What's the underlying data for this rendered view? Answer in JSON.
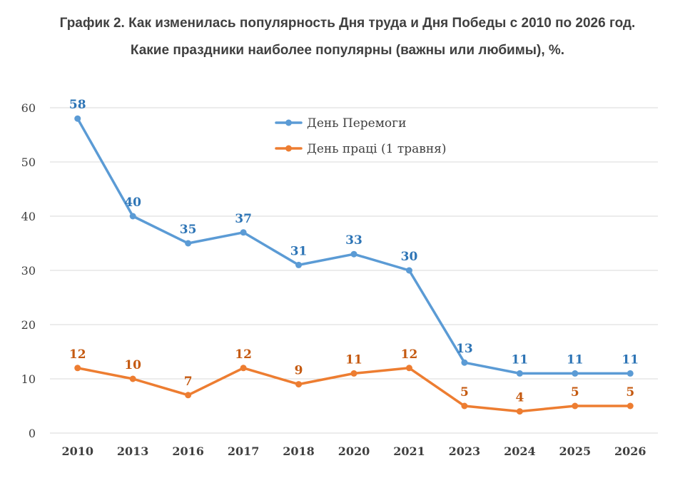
{
  "title_line1": "График 2. Как изменилась популярность Дня труда и Дня Победы с 2010 по 2026 год.",
  "title_line2": "Какие праздники наиболее популярны (важны или любимы), %.",
  "colors": {
    "victory": "#5b9bd5",
    "victory_label": "#2e75b6",
    "labour": "#ed7d31",
    "labour_label": "#c55a11",
    "grid": "#d9d9d9",
    "axis_text": "#404040"
  },
  "chart_data": {
    "type": "line",
    "title": "График 2. Как изменилась популярность Дня труда и Дня Победы с 2010 по 2026 год. Какие праздники наиболее популярны (важны или любимы), %.",
    "categories": [
      "2010",
      "2013",
      "2016",
      "2017",
      "2018",
      "2020",
      "2021",
      "2023",
      "2024",
      "2025",
      "2026"
    ],
    "series": [
      {
        "name": "День Перемоги",
        "values": [
          58,
          40,
          35,
          37,
          31,
          33,
          30,
          13,
          11,
          11,
          11
        ]
      },
      {
        "name": "День праці (1 травня)",
        "values": [
          12,
          10,
          7,
          12,
          9,
          11,
          12,
          5,
          4,
          5,
          5
        ]
      }
    ],
    "ylim": [
      0,
      60
    ],
    "yticks": [
      "0",
      "10",
      "20",
      "30",
      "40",
      "50",
      "60"
    ],
    "grid": true,
    "legend_position": "top-center",
    "data_labels": true
  }
}
